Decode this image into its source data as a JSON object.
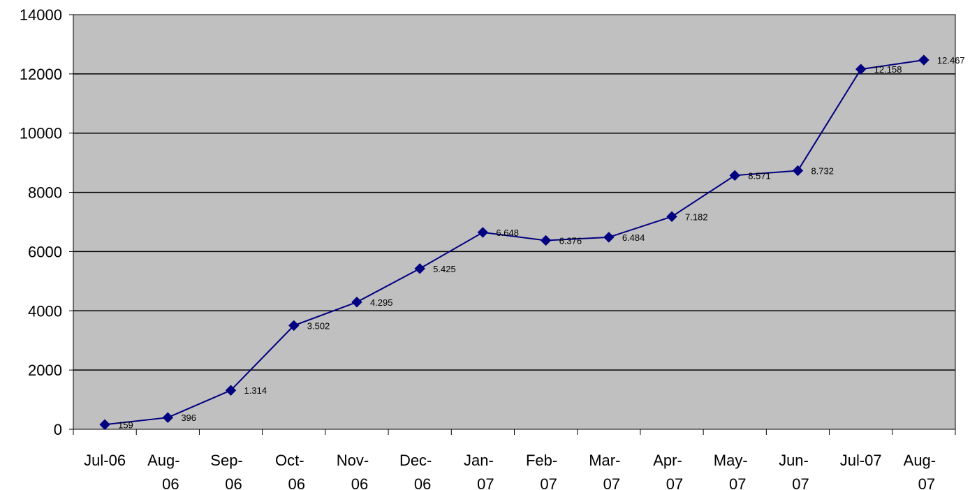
{
  "chart_data": {
    "type": "line",
    "title": "",
    "xlabel": "",
    "ylabel": "",
    "categories": [
      [
        "Jul-06"
      ],
      [
        "Aug-",
        "06"
      ],
      [
        "Sep-",
        "06"
      ],
      [
        "Oct-",
        "06"
      ],
      [
        "Nov-",
        "06"
      ],
      [
        "Dec-",
        "06"
      ],
      [
        "Jan-",
        "07"
      ],
      [
        "Feb-",
        "07"
      ],
      [
        "Mar-",
        "07"
      ],
      [
        "Apr-",
        "07"
      ],
      [
        "May-",
        "07"
      ],
      [
        "Jun-",
        "07"
      ],
      [
        "Jul-07"
      ],
      [
        "Aug-",
        "07"
      ]
    ],
    "series": [
      {
        "values": [
          159,
          396,
          1314,
          3502,
          4295,
          5425,
          6648,
          6376,
          6484,
          7182,
          8571,
          8732,
          12158,
          12467
        ],
        "labels": [
          "159",
          "396",
          "1.314",
          "3.502",
          "4.295",
          "5.425",
          "6.648",
          "6.376",
          "6.484",
          "7.182",
          "8.571",
          "8.732",
          "12.158",
          "12.467"
        ],
        "color": "#000080",
        "marker": "diamond"
      }
    ],
    "ylim": [
      0,
      14000
    ],
    "yticks": [
      0,
      2000,
      4000,
      6000,
      8000,
      10000,
      12000,
      14000
    ],
    "grid": true,
    "legend": "none",
    "plot_background": "#c0c0c0"
  }
}
